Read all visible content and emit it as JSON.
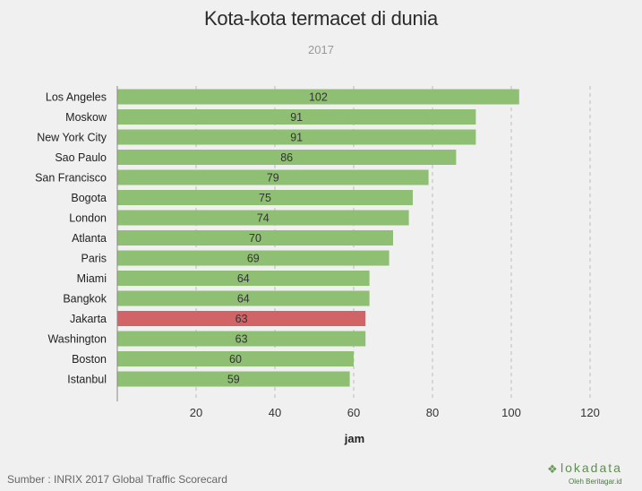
{
  "chart_data": {
    "type": "bar",
    "orientation": "horizontal",
    "title": "Kota-kota termacet di dunia",
    "subtitle": "2017",
    "xlabel": "jam",
    "xlim": [
      0,
      125
    ],
    "xticks": [
      20,
      40,
      60,
      80,
      100,
      120
    ],
    "grid": true,
    "categories": [
      "Los Angeles",
      "Moskow",
      "New York City",
      "Sao Paulo",
      "San Francisco",
      "Bogota",
      "London",
      "Atlanta",
      "Paris",
      "Miami",
      "Bangkok",
      "Jakarta",
      "Washington",
      "Boston",
      "Istanbul"
    ],
    "values": [
      102,
      91,
      91,
      86,
      79,
      75,
      74,
      70,
      69,
      64,
      64,
      63,
      63,
      60,
      59
    ],
    "highlight": "Jakarta",
    "colors": {
      "bar": "#8fbf72",
      "highlight": "#d06466",
      "grid": "#bbbbbb"
    },
    "source": "Sumber : INRIX 2017 Global Traffic Scorecard"
  },
  "brand": {
    "icon": "lokadata-mark-icon",
    "name": "lokadata",
    "tagline": "Oleh Beritagar.id"
  }
}
